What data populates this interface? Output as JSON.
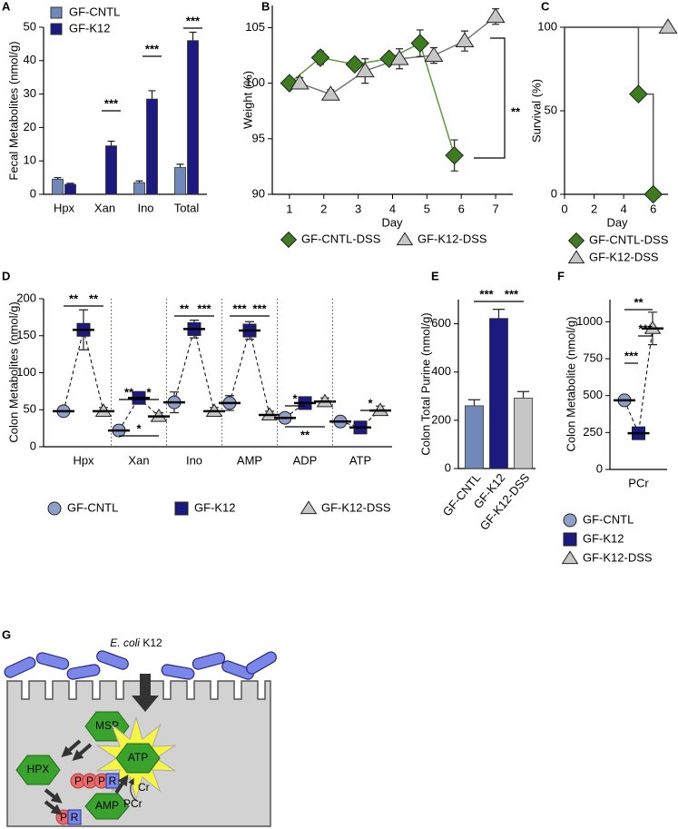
{
  "chart_data": [
    {
      "panel": "A",
      "type": "bar",
      "y_label": "Fecal Metabolites (nmol/g)",
      "categories": [
        "Hpx",
        "Xan",
        "Ino",
        "Total"
      ],
      "series": [
        {
          "name": "GF-CNTL",
          "color": "#7189b9",
          "values": [
            4.5,
            null,
            3.5,
            8
          ],
          "errors": [
            0.5,
            null,
            0.5,
            1
          ]
        },
        {
          "name": "GF-K12",
          "color": "#1c1a80",
          "values": [
            3,
            14.5,
            28.5,
            46
          ],
          "errors": [
            0.3,
            1.4,
            2.5,
            2.5
          ]
        }
      ],
      "ylim": [
        0,
        50
      ],
      "yticks": [
        0,
        10,
        20,
        30,
        40,
        50
      ],
      "annotations": [
        "***",
        "***",
        "***"
      ],
      "legend": "upper left"
    },
    {
      "panel": "B",
      "type": "line",
      "x_label": "Day",
      "y_label": "Weight (%)",
      "xlim": [
        0.5,
        7.5
      ],
      "xticks": [
        1,
        2,
        3,
        4,
        5,
        6,
        7
      ],
      "ylim": [
        90,
        107
      ],
      "yticks": [
        90,
        95,
        100,
        105
      ],
      "series": [
        {
          "name": "GF-CNTL-DSS",
          "color": "#3d7d1f",
          "line_color": "#5e9a3a",
          "marker": "diamond",
          "x": [
            1,
            1.9,
            2.9,
            3.9,
            4.8,
            5.8
          ],
          "values": [
            100,
            102.3,
            101.7,
            102.2,
            103.6,
            93.5
          ],
          "errors": [
            0.3,
            0.6,
            0.4,
            0.4,
            1.2,
            1.4
          ]
        },
        {
          "name": "GF-K12-DSS",
          "color": "#c6c6c6",
          "line_color": "#777777",
          "marker": "triangle",
          "x": [
            1.3,
            2.2,
            3.2,
            4.2,
            5.2,
            6.1,
            7
          ],
          "values": [
            100,
            99,
            101.1,
            102.2,
            102.5,
            103.8,
            106
          ],
          "errors": [
            0.5,
            0.4,
            1.1,
            0.9,
            0.7,
            0.9,
            0.7
          ]
        }
      ],
      "annotations": [
        "**"
      ],
      "legend": "below"
    },
    {
      "panel": "C",
      "type": "step",
      "x_label": "Day",
      "y_label": "Survival (%)",
      "xlim": [
        0,
        7
      ],
      "xticks": [
        0,
        2,
        4,
        6
      ],
      "ylim": [
        0,
        100
      ],
      "yticks": [
        0,
        50,
        100
      ],
      "series": [
        {
          "name": "GF-CNTL-DSS",
          "color": "#3d7d1f",
          "line_color": "#555555",
          "marker": "diamond",
          "x": [
            0,
            5,
            6
          ],
          "values": [
            100,
            60,
            0
          ]
        },
        {
          "name": "GF-K12-DSS",
          "color": "#c6c6c6",
          "line_color": "#555555",
          "marker": "triangle",
          "x": [
            0,
            7
          ],
          "values": [
            100,
            100
          ]
        }
      ],
      "legend": "below"
    },
    {
      "panel": "D",
      "type": "dot",
      "y_label": "Colon Metabolites (nmol/g)",
      "categories": [
        "Hpx",
        "Xan",
        "Ino",
        "AMP",
        "ADP",
        "ATP"
      ],
      "series": [
        {
          "name": "GF-CNTL",
          "color": "#8d9fca",
          "marker": "circle",
          "values": [
            48,
            22,
            60,
            59,
            39,
            34
          ],
          "errors": [
            5,
            5,
            14,
            10,
            5,
            5
          ]
        },
        {
          "name": "GF-K12",
          "color": "#1c1a80",
          "marker": "square",
          "values": [
            158,
            66,
            159,
            157,
            59,
            26
          ],
          "errors": [
            27,
            5,
            12,
            12,
            3,
            2
          ]
        },
        {
          "name": "GF-K12-DSS",
          "color": "#c6c6c6",
          "marker": "triangle",
          "values": [
            48,
            41,
            48,
            43,
            61,
            49
          ],
          "errors": [
            5,
            5,
            5,
            5,
            5,
            6
          ]
        }
      ],
      "ylim": [
        0,
        200
      ],
      "yticks": [
        0,
        50,
        100,
        150,
        200
      ],
      "separators": true,
      "annotations": [
        "**",
        "**",
        "**",
        "*",
        "*",
        "**",
        "***",
        "***",
        "***",
        "*",
        "**",
        "*"
      ],
      "legend": "below"
    },
    {
      "panel": "E",
      "type": "bar",
      "y_label": "Colon Total Purine (nmol/g)",
      "categories": [
        "GF-CNTL",
        "GF-K12",
        "GF-K12-DSS"
      ],
      "values": [
        260,
        622,
        292
      ],
      "errors": [
        25,
        38,
        27
      ],
      "colors": [
        "#7189b9",
        "#1c1a80",
        "#c6c6c6"
      ],
      "ylim": [
        0,
        700
      ],
      "yticks": [
        0,
        200,
        400,
        600
      ],
      "annotations": [
        "***",
        "***"
      ]
    },
    {
      "panel": "F",
      "type": "dot",
      "y_label": "Colon Metabolite (nmol/g)",
      "categories": [
        "PCr"
      ],
      "series": [
        {
          "name": "GF-CNTL",
          "color": "#8d9fca",
          "marker": "circle",
          "values": [
            468
          ],
          "errors": [
            15
          ]
        },
        {
          "name": "GF-K12",
          "color": "#1c1a80",
          "marker": "square",
          "values": [
            245
          ],
          "errors": [
            30
          ]
        },
        {
          "name": "GF-K12-DSS",
          "color": "#c6c6c6",
          "marker": "triangle",
          "values": [
            955
          ],
          "errors": [
            110
          ]
        }
      ],
      "ylim": [
        0,
        1150
      ],
      "yticks": [
        0,
        250,
        500,
        750,
        1000
      ],
      "annotations": [
        "**",
        "***",
        "***"
      ],
      "legend": "below"
    }
  ],
  "diagram": {
    "panel": "G",
    "organism": "E. coli",
    "strain": "K12",
    "nodes": [
      "MSP",
      "HPX",
      "ATP",
      "AMP"
    ],
    "atp_groups": [
      "P",
      "P",
      "P",
      "R"
    ],
    "amp_groups": [
      "P",
      "R"
    ],
    "cr": "Cr",
    "pcr": "PCr"
  }
}
